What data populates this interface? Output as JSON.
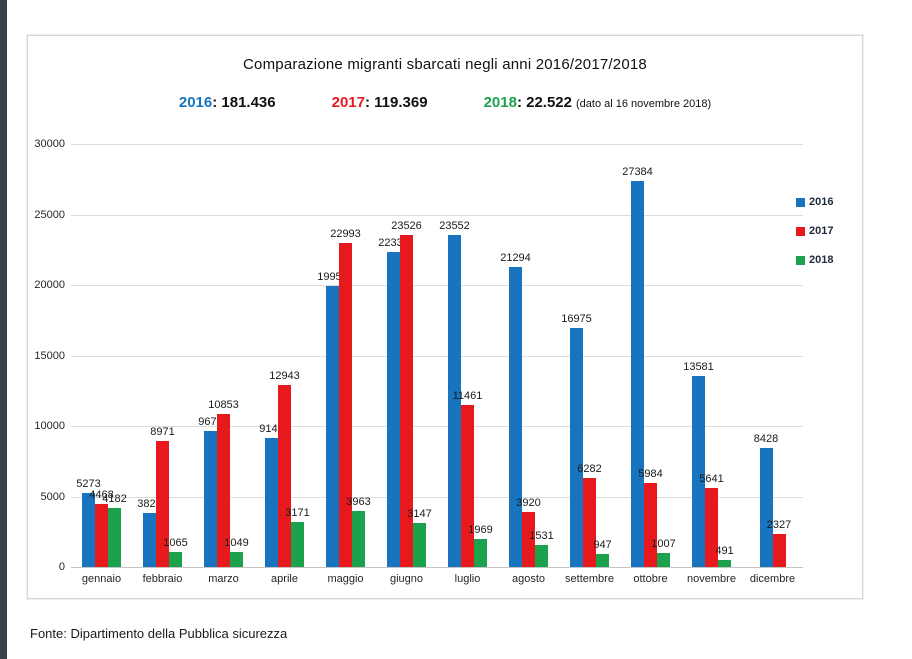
{
  "header": {
    "title": "Comparazione migranti sbarcati negli anni 2016/2017/2018",
    "totals": [
      {
        "year": "2016",
        "separator": ": ",
        "value": "181.436",
        "color": "#1874BF",
        "note": ""
      },
      {
        "year": "2017",
        "separator": ": ",
        "value": "119.369",
        "color": "#E8191D",
        "note": ""
      },
      {
        "year": "2018",
        "separator": ": ",
        "value": "22.522",
        "color": "#1CA24D",
        "note": "(dato al 16 novembre 2018)"
      }
    ]
  },
  "chart_data": {
    "type": "bar",
    "title": "Comparazione migranti sbarcati negli anni 2016/2017/2018",
    "categories": [
      "gennaio",
      "febbraio",
      "marzo",
      "aprile",
      "maggio",
      "giugno",
      "luglio",
      "agosto",
      "settembre",
      "ottobre",
      "novembre",
      "dicembre"
    ],
    "series": [
      {
        "name": "2016",
        "color": "#1874BF",
        "values": [
          5273,
          3828,
          9676,
          9149,
          19957,
          22339,
          23552,
          21294,
          16975,
          27384,
          13581,
          8428
        ]
      },
      {
        "name": "2017",
        "color": "#E8191D",
        "values": [
          4468,
          8971,
          10853,
          12943,
          22993,
          23526,
          11461,
          3920,
          6282,
          5984,
          5641,
          2327
        ]
      },
      {
        "name": "2018",
        "color": "#1CA24D",
        "values": [
          4182,
          1065,
          1049,
          3171,
          3963,
          3147,
          1969,
          1531,
          947,
          1007,
          491,
          null
        ]
      }
    ],
    "ylabel": "",
    "xlabel": "",
    "ylim": [
      0,
      30000
    ],
    "yticks": [
      0,
      5000,
      10000,
      15000,
      20000,
      25000,
      30000
    ],
    "grid": true,
    "legend_position": "right",
    "data_labels": true
  },
  "footer": {
    "source": "Fonte: Dipartimento della Pubblica sicurezza"
  }
}
